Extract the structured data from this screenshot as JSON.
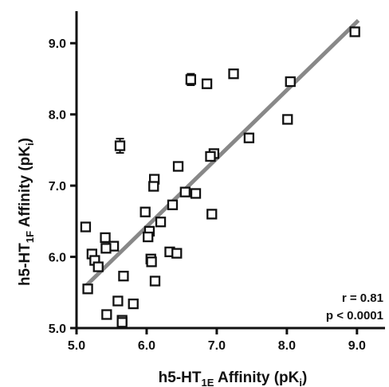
{
  "chart_data": {
    "type": "scatter",
    "title": "",
    "xlabel": {
      "base": "h5-HT",
      "sub": "1E",
      "rest": " Affinity (pK",
      "sub2": "i",
      "end": ")"
    },
    "ylabel": {
      "base": "h5-HT",
      "sub": "1F",
      "rest": " Affinity (pK",
      "sub2": "i",
      "end": ")"
    },
    "xlim": [
      5.0,
      9.4
    ],
    "ylim": [
      5.0,
      9.45
    ],
    "xticks": [
      "5.0",
      "6.0",
      "7.0",
      "8.0",
      "9.0"
    ],
    "yticks": [
      "5.0",
      "6.0",
      "7.0",
      "8.0",
      "9.0"
    ],
    "grid": false,
    "marker": "open-square",
    "colors": {
      "marker": "#111111",
      "fit_line": "#888888",
      "axis": "#111111"
    },
    "fit_line": {
      "x": [
        5.12,
        9.02
      ],
      "y": [
        5.58,
        9.32
      ]
    },
    "annotations": [
      "r = 0.81",
      "p < 0.0001"
    ],
    "points": [
      {
        "x": 8.97,
        "y": 9.16
      },
      {
        "x": 7.24,
        "y": 8.57
      },
      {
        "x": 6.63,
        "y": 8.49,
        "yerr": 0.08
      },
      {
        "x": 6.86,
        "y": 8.43,
        "yerr": 0.06
      },
      {
        "x": 8.05,
        "y": 8.46
      },
      {
        "x": 8.01,
        "y": 7.93
      },
      {
        "x": 7.46,
        "y": 7.67
      },
      {
        "x": 5.62,
        "y": 7.56,
        "yerr": 0.1
      },
      {
        "x": 6.96,
        "y": 7.45
      },
      {
        "x": 6.91,
        "y": 7.41
      },
      {
        "x": 6.45,
        "y": 7.27
      },
      {
        "x": 6.11,
        "y": 7.09
      },
      {
        "x": 6.1,
        "y": 6.99
      },
      {
        "x": 6.55,
        "y": 6.91
      },
      {
        "x": 6.7,
        "y": 6.89
      },
      {
        "x": 6.37,
        "y": 6.73
      },
      {
        "x": 5.98,
        "y": 6.63
      },
      {
        "x": 6.93,
        "y": 6.6
      },
      {
        "x": 5.13,
        "y": 6.42
      },
      {
        "x": 6.2,
        "y": 6.49
      },
      {
        "x": 6.04,
        "y": 6.36
      },
      {
        "x": 6.02,
        "y": 6.28
      },
      {
        "x": 5.41,
        "y": 6.27
      },
      {
        "x": 5.53,
        "y": 6.15
      },
      {
        "x": 5.42,
        "y": 6.12
      },
      {
        "x": 5.22,
        "y": 6.04
      },
      {
        "x": 6.33,
        "y": 6.07
      },
      {
        "x": 6.43,
        "y": 6.05
      },
      {
        "x": 6.06,
        "y": 5.97
      },
      {
        "x": 5.26,
        "y": 5.95
      },
      {
        "x": 6.07,
        "y": 5.93
      },
      {
        "x": 5.31,
        "y": 5.86
      },
      {
        "x": 5.67,
        "y": 5.73
      },
      {
        "x": 6.12,
        "y": 5.66
      },
      {
        "x": 5.16,
        "y": 5.55
      },
      {
        "x": 5.59,
        "y": 5.38
      },
      {
        "x": 5.81,
        "y": 5.34
      },
      {
        "x": 5.43,
        "y": 5.19
      },
      {
        "x": 5.65,
        "y": 5.11
      },
      {
        "x": 5.65,
        "y": 5.08
      }
    ]
  }
}
